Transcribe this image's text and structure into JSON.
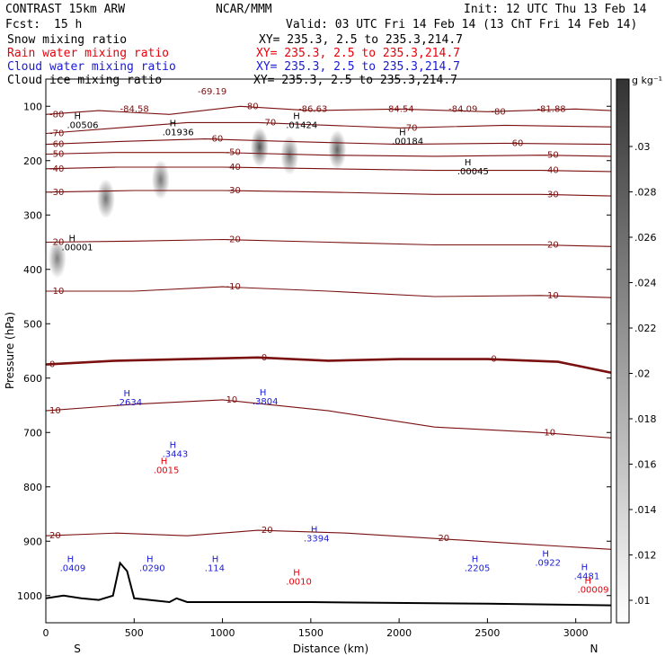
{
  "header": {
    "model": "CONTRAST 15km ARW",
    "center": "NCAR/MMM",
    "init": "Init: 12 UTC Thu 13 Feb 14",
    "fcst_label": "Fcst:",
    "fcst_value": "15 h",
    "valid": "Valid: 03 UTC Fri 14 Feb 14 (13 ChT Fri 14 Feb 14)"
  },
  "legend": [
    {
      "name": "Snow mixing ratio",
      "xy": "XY= 235.3,  2.5 to 235.3,214.7",
      "color": "#000000"
    },
    {
      "name": "Rain water mixing ratio",
      "xy": "XY= 235.3,  2.5 to 235.3,214.7",
      "color": "#e8000b"
    },
    {
      "name": "Cloud water mixing ratio",
      "xy": "XY= 235.3,  2.5 to 235.3,214.7",
      "color": "#1a1ad6"
    },
    {
      "name": "Cloud ice mixing ratio",
      "xy": "XY= 235.3,  2.5 to 235.3,214.7",
      "color": "#000000"
    }
  ],
  "colorbar": {
    "unit": "g kg⁻¹",
    "ticks": [
      ".03",
      ".028",
      ".026",
      ".024",
      ".022",
      ".02",
      ".018",
      ".016",
      ".014",
      ".012",
      ".01"
    ]
  },
  "chart_data": {
    "type": "heatmap",
    "xlabel": "Distance (km)",
    "ylabel": "Pressure (hPa)",
    "xlim": [
      0,
      3200
    ],
    "ylim": [
      1050,
      50
    ],
    "x_ticks": [
      "0",
      "500",
      "1000",
      "1500",
      "2000",
      "2500",
      "3000"
    ],
    "y_ticks": [
      "100",
      "200",
      "300",
      "400",
      "500",
      "600",
      "700",
      "800",
      "900",
      "1000"
    ],
    "x_end_labels": {
      "left": "S",
      "right": "N"
    },
    "temperature_contours": [
      {
        "label": "-80",
        "points": [
          [
            0,
            115
          ],
          [
            300,
            108
          ],
          [
            700,
            115
          ],
          [
            1100,
            100
          ],
          [
            1500,
            108
          ],
          [
            2000,
            105
          ],
          [
            2500,
            110
          ],
          [
            3000,
            105
          ],
          [
            3200,
            108
          ]
        ]
      },
      {
        "label": "-70",
        "points": [
          [
            0,
            150
          ],
          [
            400,
            140
          ],
          [
            800,
            130
          ],
          [
            1200,
            130
          ],
          [
            1600,
            135
          ],
          [
            2000,
            140
          ],
          [
            2600,
            135
          ],
          [
            3200,
            138
          ]
        ]
      },
      {
        "label": "-60",
        "points": [
          [
            0,
            170
          ],
          [
            400,
            165
          ],
          [
            900,
            160
          ],
          [
            1400,
            165
          ],
          [
            2000,
            170
          ],
          [
            2600,
            168
          ],
          [
            3200,
            170
          ]
        ]
      },
      {
        "label": "-50",
        "points": [
          [
            0,
            188
          ],
          [
            400,
            185
          ],
          [
            1000,
            185
          ],
          [
            1600,
            190
          ],
          [
            2200,
            192
          ],
          [
            2800,
            190
          ],
          [
            3200,
            192
          ]
        ]
      },
      {
        "label": "-40",
        "points": [
          [
            0,
            215
          ],
          [
            400,
            212
          ],
          [
            1000,
            212
          ],
          [
            1600,
            215
          ],
          [
            2200,
            218
          ],
          [
            2800,
            218
          ],
          [
            3200,
            220
          ]
        ]
      },
      {
        "label": "-30",
        "points": [
          [
            0,
            258
          ],
          [
            500,
            255
          ],
          [
            1000,
            255
          ],
          [
            1600,
            258
          ],
          [
            2200,
            262
          ],
          [
            2800,
            262
          ],
          [
            3200,
            265
          ]
        ]
      },
      {
        "label": "-20",
        "points": [
          [
            0,
            350
          ],
          [
            500,
            348
          ],
          [
            1000,
            345
          ],
          [
            1600,
            350
          ],
          [
            2200,
            355
          ],
          [
            2800,
            355
          ],
          [
            3200,
            358
          ]
        ]
      },
      {
        "label": "-10",
        "points": [
          [
            0,
            440
          ],
          [
            500,
            440
          ],
          [
            1000,
            432
          ],
          [
            1600,
            440
          ],
          [
            2200,
            450
          ],
          [
            2800,
            448
          ],
          [
            3200,
            452
          ]
        ]
      },
      {
        "label": "0",
        "points": [
          [
            0,
            575
          ],
          [
            400,
            568
          ],
          [
            800,
            565
          ],
          [
            1200,
            562
          ],
          [
            1600,
            568
          ],
          [
            2000,
            565
          ],
          [
            2500,
            565
          ],
          [
            2900,
            570
          ],
          [
            3200,
            590
          ]
        ]
      },
      {
        "label": "10",
        "points": [
          [
            0,
            660
          ],
          [
            500,
            648
          ],
          [
            1000,
            640
          ],
          [
            1600,
            660
          ],
          [
            2200,
            690
          ],
          [
            2800,
            700
          ],
          [
            3200,
            710
          ]
        ]
      },
      {
        "label": "20",
        "points": [
          [
            0,
            890
          ],
          [
            400,
            885
          ],
          [
            800,
            890
          ],
          [
            1200,
            880
          ],
          [
            1700,
            885
          ],
          [
            2200,
            895
          ],
          [
            2700,
            905
          ],
          [
            3200,
            915
          ]
        ]
      }
    ],
    "minima_labels": [
      {
        "label": "-69.19",
        "x": 860,
        "p": 78
      },
      {
        "label": "-84.58",
        "x": 420,
        "p": 110
      },
      {
        "label": "-86.63",
        "x": 1430,
        "p": 110
      },
      {
        "label": "-84.54",
        "x": 1920,
        "p": 110
      },
      {
        "label": "-84.09",
        "x": 2280,
        "p": 110
      },
      {
        "label": "-81.88",
        "x": 2780,
        "p": 110
      }
    ],
    "snow_max_labels": [
      {
        "label": ".00506",
        "x": 160,
        "p": 140
      },
      {
        "label": ".01936",
        "x": 700,
        "p": 153
      },
      {
        "label": ".01424",
        "x": 1400,
        "p": 140
      },
      {
        "label": ".00184",
        "x": 2000,
        "p": 170
      },
      {
        "label": ".00045",
        "x": 2370,
        "p": 225
      },
      {
        "label": ".00001",
        "x": 130,
        "p": 365
      }
    ],
    "cloud_water_max_labels": [
      {
        "label": ".2634",
        "x": 440,
        "p": 650
      },
      {
        "label": ".3443",
        "x": 700,
        "p": 745
      },
      {
        "label": ".3804",
        "x": 1210,
        "p": 648
      },
      {
        "label": ".3394",
        "x": 1500,
        "p": 900
      },
      {
        "label": ".0409",
        "x": 120,
        "p": 955
      },
      {
        "label": ".0290",
        "x": 570,
        "p": 955
      },
      {
        "label": ".114",
        "x": 940,
        "p": 955
      },
      {
        "label": ".2205",
        "x": 2410,
        "p": 955
      },
      {
        "label": ".0922",
        "x": 2810,
        "p": 945
      },
      {
        "label": ".4481",
        "x": 3030,
        "p": 970
      }
    ],
    "rain_max_labels": [
      {
        "label": ".0015",
        "x": 650,
        "p": 775
      },
      {
        "label": ".0010",
        "x": 1400,
        "p": 980
      },
      {
        "label": ".00009",
        "x": 3050,
        "p": 995
      }
    ],
    "surface_pressure": [
      [
        0,
        1005
      ],
      [
        100,
        1000
      ],
      [
        200,
        1005
      ],
      [
        300,
        1008
      ],
      [
        380,
        1000
      ],
      [
        420,
        940
      ],
      [
        460,
        955
      ],
      [
        500,
        1005
      ],
      [
        700,
        1012
      ],
      [
        740,
        1005
      ],
      [
        800,
        1012
      ],
      [
        1500,
        1012
      ],
      [
        2500,
        1015
      ],
      [
        3200,
        1018
      ]
    ],
    "snow_blobs": [
      {
        "x": 1210,
        "p": 175,
        "intensity": 0.9
      },
      {
        "x": 1380,
        "p": 190,
        "intensity": 0.6
      },
      {
        "x": 1650,
        "p": 180,
        "intensity": 0.75
      },
      {
        "x": 340,
        "p": 270,
        "intensity": 0.6
      },
      {
        "x": 65,
        "p": 380,
        "intensity": 0.5
      },
      {
        "x": 650,
        "p": 235,
        "intensity": 0.55
      }
    ]
  }
}
